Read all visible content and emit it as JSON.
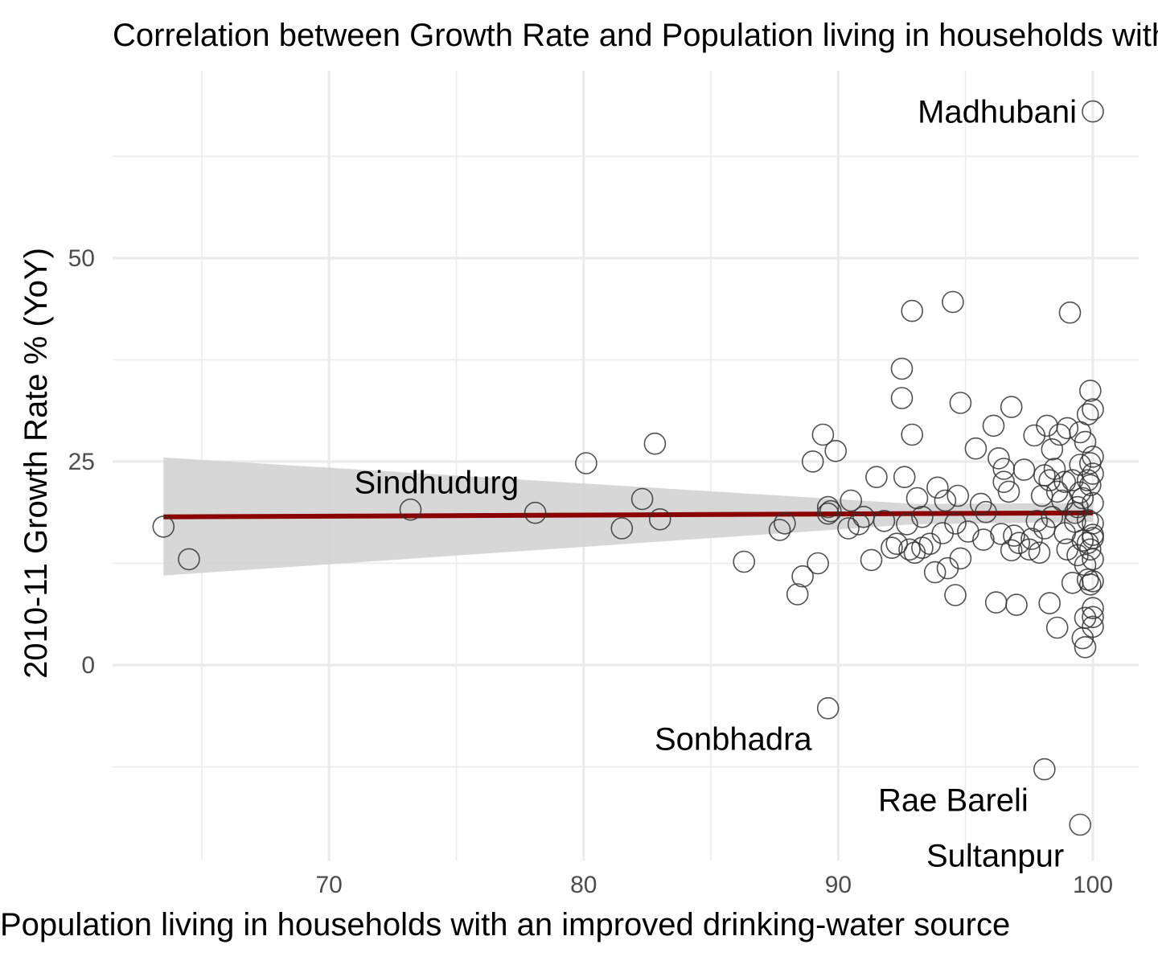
{
  "chart_data": {
    "type": "scatter",
    "title": "Correlation between Growth Rate and Population living in households with an improved drinking-water source",
    "xlabel": "Population living in households with an improved drinking-water source",
    "ylabel": "2010-11 Growth Rate % (YoY)",
    "xlim": [
      61.5,
      101.8
    ],
    "ylim": [
      -24,
      73
    ],
    "x_ticks": [
      70,
      80,
      90,
      100
    ],
    "y_ticks": [
      0,
      25,
      50
    ],
    "x_minor": [
      65,
      75,
      85,
      95
    ],
    "y_minor": [
      -12.5,
      12.5,
      37.5,
      62.5
    ],
    "grid": true,
    "legend": "none",
    "colors": {
      "points": "#333333",
      "trend": "#8b0000",
      "band": "#d3d3d3",
      "grid": "#ebebeb"
    },
    "trend": {
      "x": [
        63.5,
        100
      ],
      "y": [
        18.2,
        18.7
      ]
    },
    "confidence_band": {
      "x": [
        63.5,
        100
      ],
      "upper": [
        25.5,
        19.9
      ],
      "lower": [
        11.0,
        17.6
      ],
      "pinch_x": 93,
      "pinch_upper": 19.8,
      "pinch_lower": 17.3
    },
    "annotations": [
      {
        "label": "Madhubani",
        "x": 100,
        "y": 68,
        "side": "left"
      },
      {
        "label": "Sindhudurg",
        "x": 73.2,
        "y": 19.1,
        "side": "above"
      },
      {
        "label": "Sonbhadra",
        "x": 89.6,
        "y": -5.3,
        "side": "below-left"
      },
      {
        "label": "Rae Bareli",
        "x": 98.1,
        "y": -12.8,
        "side": "below-left"
      },
      {
        "label": "Sultanpur",
        "x": 99.5,
        "y": -19.6,
        "side": "below-left"
      }
    ],
    "series": [
      {
        "x": [
          63.5,
          64.5,
          73.2,
          78.1,
          80.1,
          81.5,
          82.3,
          82.8,
          83.0,
          86.3,
          87.7,
          87.9,
          88.4,
          88.6,
          89.0,
          89.2,
          89.4,
          89.6,
          89.6,
          89.7,
          89.9,
          90.4,
          90.5,
          90.8,
          91.0,
          91.3,
          91.5,
          91.8,
          92.1,
          92.3,
          92.5,
          92.5,
          92.6,
          92.7,
          92.8,
          92.9,
          92.9,
          93.0,
          93.1,
          93.3,
          93.3,
          93.6,
          93.8,
          93.9,
          94.1,
          94.2,
          94.3,
          94.5,
          94.6,
          94.6,
          94.7,
          94.8,
          94.8,
          95.1,
          95.4,
          95.6,
          95.7,
          95.8,
          96.1,
          96.2,
          96.3,
          96.4,
          96.5,
          96.5,
          96.7,
          96.8,
          96.8,
          96.9,
          97.0,
          97.1,
          97.3,
          97.5,
          97.6,
          97.7,
          97.8,
          97.9,
          98.0,
          98.1,
          98.1,
          98.2,
          98.3,
          98.3,
          98.4,
          98.4,
          98.5,
          98.6,
          98.6,
          98.7,
          98.8,
          98.9,
          98.9,
          99.0,
          99.0,
          99.1,
          99.2,
          99.2,
          99.3,
          99.4,
          99.5,
          99.5,
          99.5,
          99.6,
          99.6,
          99.7,
          99.7,
          99.7,
          99.8,
          99.8,
          99.8,
          99.8,
          99.9,
          99.9,
          99.9,
          99.9,
          100.0,
          100.0,
          100.0,
          100.0,
          100.0,
          100.0,
          100.0,
          100.0,
          100.0,
          100.0,
          100.0,
          99.6,
          99.7,
          99.9,
          100.0,
          99.4,
          99.3,
          99.8,
          100.0,
          89.6,
          98.1,
          99.5
        ],
        "y": [
          17.0,
          13.0,
          19.1,
          18.7,
          24.8,
          16.8,
          20.4,
          27.2,
          17.9,
          12.7,
          16.6,
          17.4,
          8.7,
          10.9,
          25.0,
          12.5,
          28.3,
          19.4,
          18.6,
          18.9,
          26.3,
          16.8,
          20.2,
          17.3,
          18.2,
          12.9,
          23.1,
          17.7,
          14.4,
          14.9,
          36.4,
          32.8,
          23.1,
          17.3,
          14.2,
          43.5,
          28.3,
          13.8,
          20.5,
          14.4,
          18.2,
          14.9,
          11.4,
          21.8,
          16.2,
          20.2,
          11.9,
          44.6,
          8.6,
          17.4,
          20.8,
          13.1,
          32.2,
          16.4,
          26.6,
          19.8,
          15.4,
          18.8,
          29.4,
          7.7,
          25.4,
          16.1,
          24.1,
          22.5,
          21.3,
          14.1,
          31.7,
          15.9,
          7.4,
          15.0,
          24.0,
          14.2,
          15.5,
          28.2,
          17.7,
          13.8,
          20.8,
          23.3,
          16.8,
          29.4,
          22.7,
          7.6,
          26.5,
          18.2,
          24.1,
          4.6,
          21.3,
          28.3,
          20.2,
          16.2,
          22.5,
          29.1,
          14.2,
          43.3,
          10.1,
          22.7,
          17.6,
          19.4,
          24.6,
          21.2,
          28.6,
          20.5,
          15.3,
          12.3,
          27.4,
          5.8,
          17.8,
          15.0,
          10.5,
          30.8,
          14.2,
          24.8,
          33.7,
          22.1,
          19.9,
          17.4,
          15.6,
          25.6,
          23.5,
          31.4,
          13.0,
          10.3,
          7.0,
          5.9,
          16.0,
          3.3,
          2.2,
          9.9,
          4.7,
          13.5,
          18.7,
          22.7,
          68.0,
          -5.3,
          -12.8,
          -19.6
        ]
      }
    ]
  }
}
